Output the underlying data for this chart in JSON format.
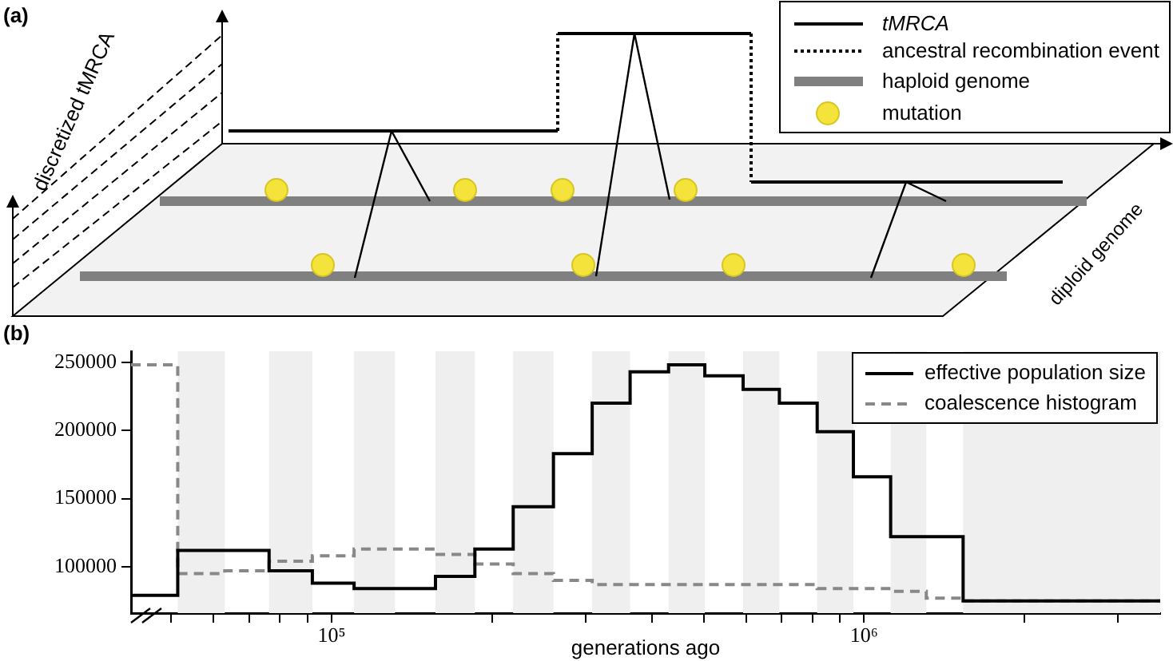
{
  "chart_data": [
    {
      "type": "other",
      "title": "(a)",
      "annotations": [
        "tMRCA",
        "ancestral recombination event",
        "haploid genome",
        "mutation",
        "discretized tMRCA",
        "diploid genome"
      ]
    },
    {
      "type": "step",
      "title": "(b)",
      "xlabel": "generations ago",
      "log": "x",
      "grid": false,
      "legend": "top right",
      "xlim": [
        42000,
        3600000
      ],
      "xticks": [
        {
          "value": 50000,
          "label": null
        },
        {
          "value": 60000,
          "label": null
        },
        {
          "value": 70000,
          "label": null
        },
        {
          "value": 80000,
          "label": null
        },
        {
          "value": 90000,
          "label": null
        },
        {
          "value": 100000,
          "label": "10⁵"
        },
        {
          "value": 200000,
          "label": null
        },
        {
          "value": 300000,
          "label": null
        },
        {
          "value": 400000,
          "label": null
        },
        {
          "value": 500000,
          "label": null
        },
        {
          "value": 600000,
          "label": null
        },
        {
          "value": 700000,
          "label": null
        },
        {
          "value": 800000,
          "label": null
        },
        {
          "value": 900000,
          "label": null
        },
        {
          "value": 1000000,
          "label": "10⁶"
        },
        {
          "value": 2000000,
          "label": null
        },
        {
          "value": 3000000,
          "label": null
        }
      ],
      "ylim": [
        66000,
        258000
      ],
      "yticks": [
        100000,
        150000,
        200000,
        250000
      ],
      "bands": [
        {
          "axis": "x",
          "from": 51400,
          "to": 63000,
          "color": "#efefef"
        },
        {
          "axis": "x",
          "from": 76300,
          "to": 92000,
          "color": "#efefef"
        },
        {
          "axis": "x",
          "from": 110200,
          "to": 131500,
          "color": "#efefef"
        },
        {
          "axis": "x",
          "from": 156700,
          "to": 185800,
          "color": "#efefef"
        },
        {
          "axis": "x",
          "from": 219300,
          "to": 261000,
          "color": "#efefef"
        },
        {
          "axis": "x",
          "from": 308600,
          "to": 363600,
          "color": "#efefef"
        },
        {
          "axis": "x",
          "from": 429400,
          "to": 502300,
          "color": "#efefef"
        },
        {
          "axis": "x",
          "from": 592800,
          "to": 693400,
          "color": "#efefef"
        },
        {
          "axis": "x",
          "from": 816600,
          "to": 955000,
          "color": "#efefef"
        },
        {
          "axis": "x",
          "from": 1122000,
          "to": 1309000,
          "color": "#efefef"
        },
        {
          "axis": "x",
          "from": 1535000,
          "to": 3600000,
          "color": "#efefef"
        }
      ],
      "series": [
        {
          "name": "effective population size",
          "color": "#000000",
          "line_style": "solid",
          "x": [
            42000,
            51400,
            76300,
            92000,
            110200,
            156700,
            185800,
            219300,
            261000,
            308600,
            363600,
            429400,
            502300,
            592800,
            693400,
            816600,
            955000,
            1122000,
            1535000,
            3600000
          ],
          "values": [
            79000,
            112000,
            97000,
            88000,
            84000,
            93000,
            113000,
            144000,
            183000,
            220000,
            243000,
            248000,
            240000,
            230000,
            220000,
            199000,
            166000,
            122000,
            75000,
            75000
          ]
        },
        {
          "name": "coalescence histogram",
          "color": "#888888",
          "line_style": "dashed",
          "x": [
            42000,
            51400,
            63000,
            76300,
            92000,
            110200,
            156700,
            185800,
            219300,
            261000,
            308600,
            816600,
            1122000,
            1309000,
            1535000,
            3600000
          ],
          "values": [
            248000,
            95000,
            97000,
            104000,
            108000,
            113000,
            109000,
            102000,
            95000,
            90000,
            87000,
            84000,
            82000,
            77000,
            75000,
            75000
          ]
        }
      ]
    }
  ]
}
